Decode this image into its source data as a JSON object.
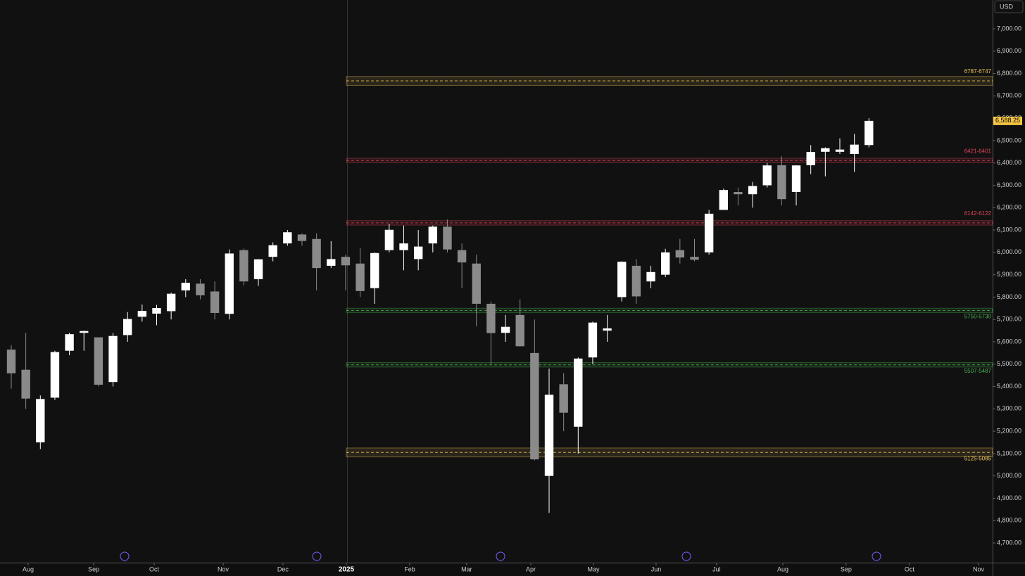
{
  "chart_data": {
    "type": "candlestick",
    "currency": "USD",
    "up_color": "#ffffff",
    "down_color": "#8a8a8a",
    "open": [
      5565,
      5475,
      5150,
      5350,
      5560,
      5640,
      5620,
      5420,
      5630,
      5712,
      5726,
      5737,
      5830,
      5860,
      5825,
      5725,
      6010,
      5880,
      5980,
      6040,
      6080,
      6060,
      5940,
      5980,
      5950,
      5840,
      6010,
      6010,
      5970,
      6040,
      6115,
      6010,
      5950,
      5770,
      5640,
      5720,
      5550,
      5000,
      5410,
      5220,
      5530,
      5650,
      5800,
      5940,
      5870,
      5900,
      6010,
      5980,
      6000,
      6190,
      6270,
      6260,
      6300,
      6390,
      6270,
      6390,
      6450,
      6450,
      6440,
      6480
    ],
    "high": [
      5585,
      5640,
      5360,
      5560,
      5640,
      5650,
      5620,
      5640,
      5733,
      5767,
      5765,
      5820,
      5880,
      5880,
      5870,
      6013,
      6017,
      5970,
      6045,
      6100,
      6085,
      6085,
      6050,
      5990,
      6020,
      6000,
      6128,
      6120,
      6100,
      6120,
      6147,
      6040,
      5990,
      5780,
      5720,
      5790,
      5700,
      5480,
      5460,
      5530,
      5690,
      5720,
      5960,
      5970,
      5940,
      6016,
      6060,
      6060,
      6190,
      6285,
      6290,
      6315,
      6400,
      6430,
      6390,
      6480,
      6470,
      6510,
      6530,
      6600
    ],
    "low": [
      5390,
      5300,
      5120,
      5340,
      5540,
      5560,
      5400,
      5400,
      5600,
      5690,
      5674,
      5700,
      5800,
      5790,
      5700,
      5700,
      5853,
      5850,
      5960,
      6030,
      6030,
      5830,
      5930,
      5830,
      5800,
      5770,
      6000,
      5920,
      5920,
      6000,
      6000,
      5840,
      5670,
      5500,
      5600,
      5580,
      5070,
      4835,
      5200,
      5100,
      5500,
      5600,
      5780,
      5770,
      5840,
      5890,
      5950,
      5960,
      5990,
      6190,
      6210,
      6200,
      6290,
      6210,
      6210,
      6350,
      6340,
      6440,
      6360,
      6470
    ],
    "close": [
      5459,
      5346,
      5344,
      5554,
      5634,
      5648,
      5408,
      5626,
      5702,
      5738,
      5751,
      5815,
      5864,
      5808,
      5729,
      5995,
      5870,
      5969,
      6032,
      6090,
      6051,
      5930,
      5970,
      5942,
      5827,
      5997,
      6101,
      6040,
      6026,
      6115,
      6013,
      5955,
      5770,
      5639,
      5667,
      5580,
      5074,
      5363,
      5283,
      5525,
      5686,
      5660,
      5958,
      5803,
      5912,
      6000,
      5977,
      5967,
      6173,
      6279,
      6260,
      6297,
      6389,
      6238,
      6389,
      6449,
      6466,
      6460,
      6482,
      6588.25
    ],
    "last_price": {
      "value": 6588.25,
      "label": "6,588.25"
    },
    "xlim": [
      -0.775,
      67.51
    ],
    "xticks": [
      {
        "value": 1.16,
        "label": "Aug"
      },
      {
        "value": 5.67,
        "label": "Sep"
      },
      {
        "value": 9.83,
        "label": "Oct"
      },
      {
        "value": 14.58,
        "label": "Nov"
      },
      {
        "value": 18.69,
        "label": "Dec"
      },
      {
        "value": 23.05,
        "label": "2025",
        "bold": true
      },
      {
        "value": 27.41,
        "label": "Feb"
      },
      {
        "value": 31.33,
        "label": "Mar"
      },
      {
        "value": 35.74,
        "label": "Apr"
      },
      {
        "value": 40.05,
        "label": "May"
      },
      {
        "value": 44.36,
        "label": "Jun"
      },
      {
        "value": 48.52,
        "label": "Jul"
      },
      {
        "value": 53.08,
        "label": "Aug"
      },
      {
        "value": 57.43,
        "label": "Sep"
      },
      {
        "value": 61.79,
        "label": "Oct"
      },
      {
        "value": 66.54,
        "label": "Nov"
      }
    ],
    "ylim": [
      4612,
      7129
    ],
    "yticks": [
      {
        "value": 4700,
        "label": "4,700.00"
      },
      {
        "value": 4800,
        "label": "4,800.00"
      },
      {
        "value": 4900,
        "label": "4,900.00"
      },
      {
        "value": 5000,
        "label": "5,000.00"
      },
      {
        "value": 5100,
        "label": "5,100.00"
      },
      {
        "value": 5200,
        "label": "5,200.00"
      },
      {
        "value": 5300,
        "label": "5,300.00"
      },
      {
        "value": 5400,
        "label": "5,400.00"
      },
      {
        "value": 5500,
        "label": "5,500.00"
      },
      {
        "value": 5600,
        "label": "5,600.00"
      },
      {
        "value": 5700,
        "label": "5,700.00"
      },
      {
        "value": 5800,
        "label": "5,800.00"
      },
      {
        "value": 5900,
        "label": "5,900.00"
      },
      {
        "value": 6000,
        "label": "6,000.00"
      },
      {
        "value": 6100,
        "label": "6,100.00"
      },
      {
        "value": 6200,
        "label": "6,200.00"
      },
      {
        "value": 6300,
        "label": "6,300.00"
      },
      {
        "value": 6400,
        "label": "6,400.00"
      },
      {
        "value": 6500,
        "label": "6,500.00"
      },
      {
        "value": 6600,
        "label": "6,600.00"
      },
      {
        "value": 6700,
        "label": "6,700.00"
      },
      {
        "value": 6800,
        "label": "6,800.00"
      },
      {
        "value": 6900,
        "label": "6,900.00"
      },
      {
        "value": 7000,
        "label": "7,000.00"
      }
    ],
    "zones": [
      {
        "label": "6787-6747",
        "high": 6787,
        "low": 6747,
        "color": "#f0c75e"
      },
      {
        "label": "6421-6401",
        "high": 6421,
        "low": 6401,
        "color": "#e0445a"
      },
      {
        "label": "6142-6122",
        "high": 6142,
        "low": 6122,
        "color": "#e0445a"
      },
      {
        "label": "5750-5730",
        "high": 5750,
        "low": 5730,
        "color": "#4caf50"
      },
      {
        "label": "5507-5487",
        "high": 5507,
        "low": 5487,
        "color": "#4caf50"
      },
      {
        "label": "5125-5085",
        "high": 5125,
        "low": 5085,
        "color": "#f0c75e"
      }
    ]
  }
}
